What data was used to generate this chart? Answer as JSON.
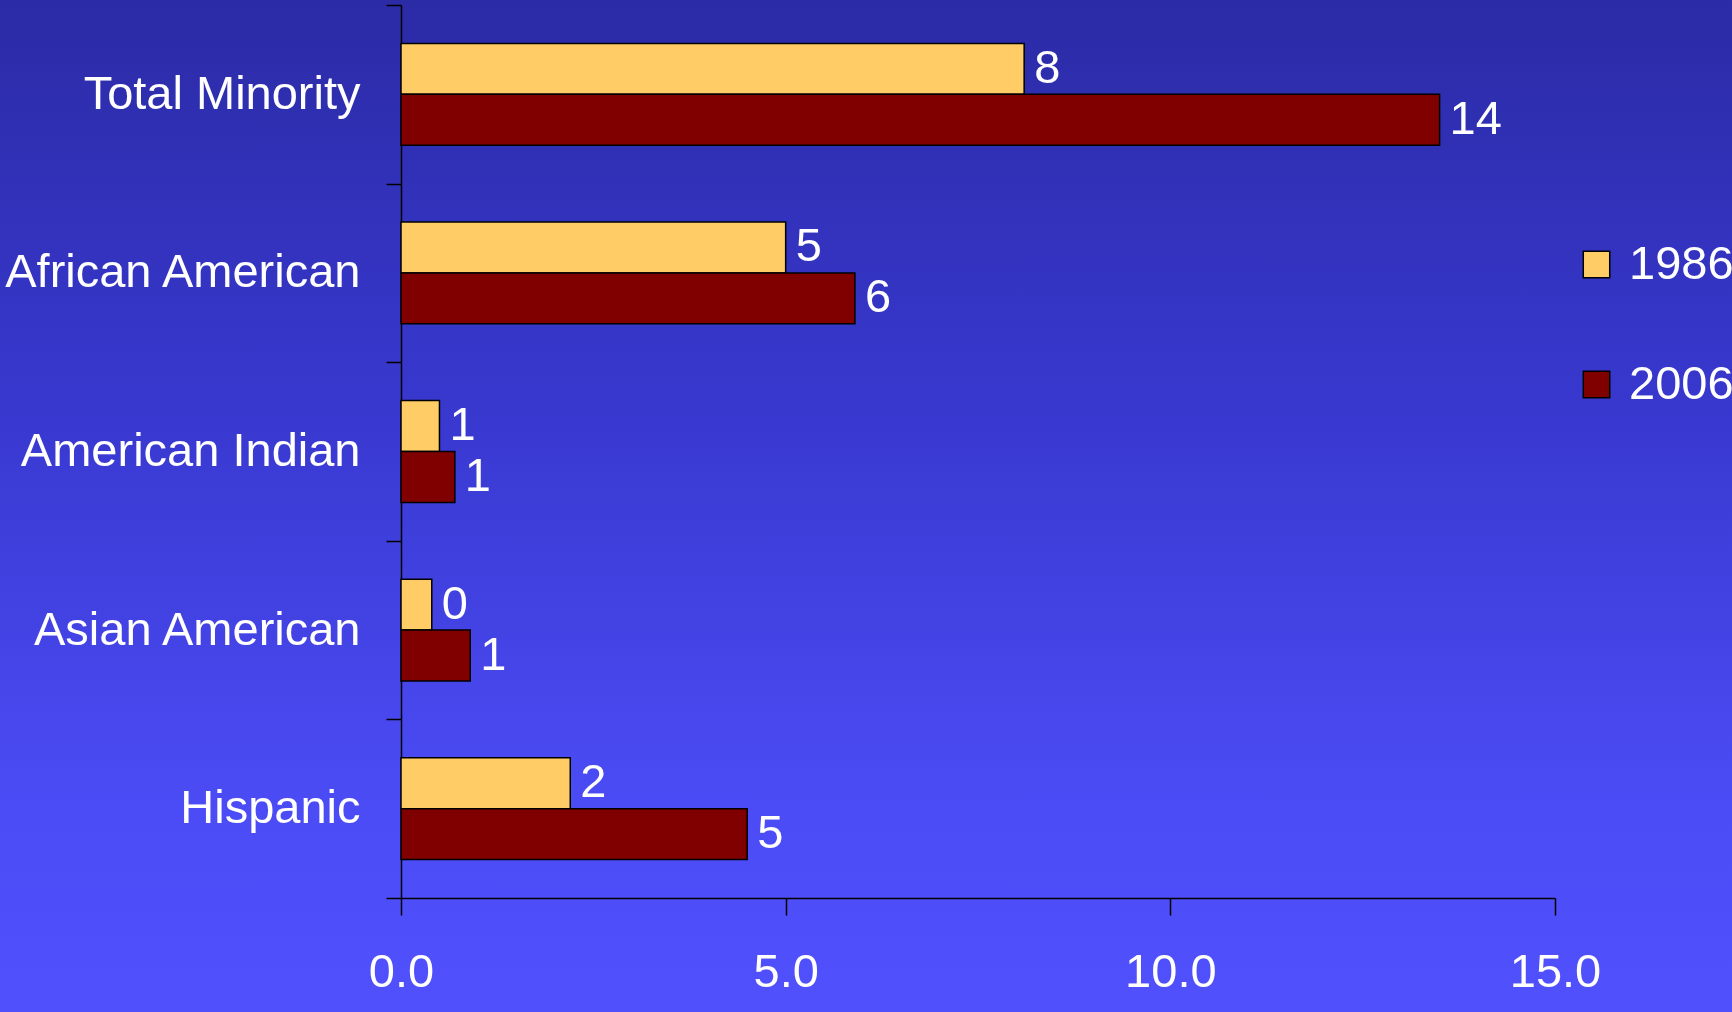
{
  "chart_data": {
    "type": "bar",
    "orientation": "horizontal",
    "categories": [
      "Total Minority",
      "African American",
      "American Indian",
      "Asian American",
      "Hispanic"
    ],
    "series": [
      {
        "name": "1986",
        "color": "#ffcc66",
        "values": [
          8.1,
          5.0,
          0.5,
          0.4,
          2.2
        ],
        "value_labels": [
          "8",
          "5",
          "1",
          "0",
          "2"
        ]
      },
      {
        "name": "2006",
        "color": "#800000",
        "values": [
          13.5,
          5.9,
          0.7,
          0.9,
          4.5
        ],
        "value_labels": [
          "14",
          "6",
          "1",
          "1",
          "5"
        ]
      }
    ],
    "xlim": [
      0,
      15
    ],
    "xticks": [
      {
        "value": 0,
        "label": "0.0"
      },
      {
        "value": 5,
        "label": "5.0"
      },
      {
        "value": 10,
        "label": "10.0"
      },
      {
        "value": 15,
        "label": "15.0"
      }
    ],
    "legend": "right",
    "grid": false
  }
}
